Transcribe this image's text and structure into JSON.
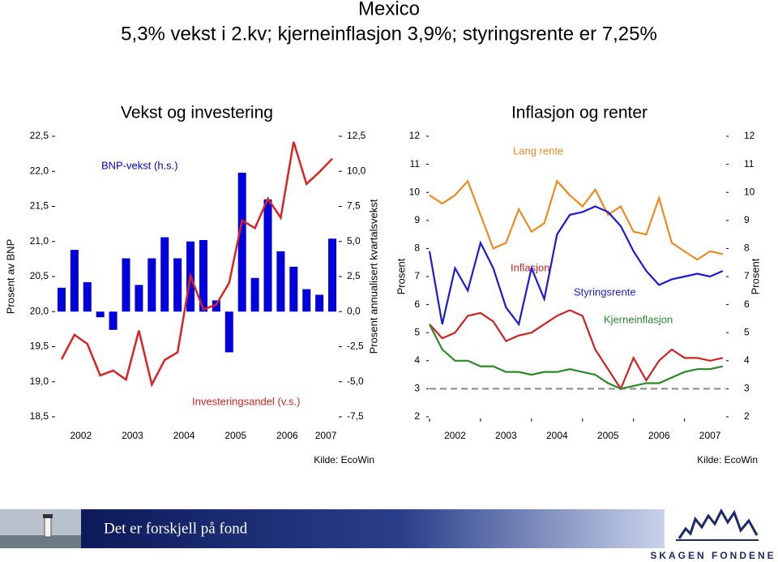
{
  "header": {
    "title": "Mexico",
    "subtitle": "5,3% vekst i 2.kv; kjerneinflasjon 3,9%; styringsrente er 7,25%"
  },
  "chart_data": [
    {
      "type": "combo",
      "title": "Vekst og investering",
      "ylabel": "Prosent av BNP",
      "y2label": "Prosent annualisert kvartalsvekst",
      "x_groups": [
        "2002",
        "2003",
        "2004",
        "2005",
        "2006",
        "2007"
      ],
      "categories": [
        null,
        null,
        null,
        null,
        null,
        null,
        null,
        null,
        null,
        null,
        null,
        null,
        null,
        null,
        null,
        null,
        null,
        null,
        null,
        null,
        null,
        null
      ],
      "ylim": [
        18.5,
        22.5
      ],
      "yticks": [
        {
          "value": 18.5,
          "label": "18,5"
        },
        {
          "value": 19,
          "label": "19,0"
        },
        {
          "value": 19.5,
          "label": "19,5"
        },
        {
          "value": 20,
          "label": "20,0"
        },
        {
          "value": 20.5,
          "label": "20,5"
        },
        {
          "value": 21,
          "label": "21,0"
        },
        {
          "value": 21.5,
          "label": "21,5"
        },
        {
          "value": 22,
          "label": "22,0"
        },
        {
          "value": 22.5,
          "label": "22,5"
        }
      ],
      "y2lim": [
        -7.5,
        12.5
      ],
      "y2ticks": [
        {
          "value": -7.5,
          "label": "-7,5"
        },
        {
          "value": -5,
          "label": "-5,0"
        },
        {
          "value": -2.5,
          "label": "-2,5"
        },
        {
          "value": 0,
          "label": "0,0"
        },
        {
          "value": 2.5,
          "label": "2,5"
        },
        {
          "value": 5,
          "label": "5,0"
        },
        {
          "value": 7.5,
          "label": "7,5"
        },
        {
          "value": 10,
          "label": "10,0"
        },
        {
          "value": 12.5,
          "label": "12,5"
        }
      ],
      "series": [
        {
          "name": "BNP-vekst (h.s.)",
          "type": "bar",
          "axis": "y2",
          "color": "#0000dd",
          "values": [
            1.7,
            4.4,
            2.1,
            -0.4,
            -1.3,
            3.8,
            1.9,
            3.8,
            5.3,
            3.8,
            5.0,
            5.1,
            0.8,
            -2.9,
            9.9,
            2.4,
            8.0,
            4.3,
            3.2,
            1.6,
            1.2,
            5.2
          ]
        },
        {
          "name": "Investeringsandel (v.s.)",
          "type": "line",
          "color": "#dd2222",
          "values": [
            19.32,
            19.67,
            19.54,
            19.09,
            19.16,
            19.03,
            19.73,
            18.96,
            19.31,
            19.42,
            20.51,
            20.03,
            20.1,
            20.41,
            21.3,
            21.19,
            21.61,
            21.34,
            22.42,
            21.82,
            21.99,
            22.18
          ]
        }
      ],
      "source": "Kilde: EcoWin"
    },
    {
      "type": "line",
      "title": "Inflasjon og renter",
      "ylabel": "Prosent",
      "y2label": "Prosent",
      "x": [
        2002.0,
        2002.25,
        2002.5,
        2002.75,
        2003.0,
        2003.25,
        2003.5,
        2003.75,
        2004.0,
        2004.25,
        2004.5,
        2004.75,
        2005.0,
        2005.25,
        2005.5,
        2005.75,
        2006.0,
        2006.25,
        2006.5,
        2006.75,
        2007.0,
        2007.25,
        2007.5,
        2007.75
      ],
      "xlim": [
        2002,
        2007.8
      ],
      "xticks": [
        2002,
        2003,
        2004,
        2005,
        2006,
        2007
      ],
      "ylim": [
        2,
        12
      ],
      "yticks": [
        2,
        3,
        4,
        5,
        6,
        7,
        8,
        9,
        10,
        11,
        12
      ],
      "y2lim": [
        2,
        12
      ],
      "y2ticks": [
        2,
        3,
        4,
        5,
        6,
        7,
        8,
        9,
        10,
        11,
        12
      ],
      "series": [
        {
          "name": "Lang rente",
          "color": "#f08a1c",
          "values": [
            9.9,
            9.6,
            9.9,
            10.4,
            9.2,
            8.0,
            8.2,
            9.4,
            8.6,
            8.9,
            10.4,
            9.9,
            9.5,
            10.1,
            9.2,
            9.5,
            8.6,
            8.5,
            9.8,
            8.2,
            7.9,
            7.6,
            7.9,
            7.8
          ]
        },
        {
          "name": "Inflasjon",
          "color": "#d42020",
          "values": [
            5.3,
            4.8,
            5.0,
            5.6,
            5.7,
            5.4,
            4.7,
            4.9,
            5.0,
            5.3,
            5.6,
            5.8,
            5.6,
            4.4,
            3.7,
            3.0,
            4.1,
            3.3,
            4.0,
            4.4,
            4.1,
            4.1,
            4.0,
            4.1
          ]
        },
        {
          "name": "Styringsrente",
          "color": "#1a1adc",
          "values": [
            7.9,
            5.3,
            7.3,
            6.5,
            8.2,
            7.3,
            5.9,
            5.3,
            7.3,
            6.2,
            8.5,
            9.2,
            9.3,
            9.5,
            9.3,
            8.8,
            7.9,
            7.2,
            6.7,
            6.9,
            7.0,
            7.1,
            7.0,
            7.2
          ]
        },
        {
          "name": "Kjerneinflasjon",
          "color": "#2a8a2a",
          "values": [
            5.3,
            4.4,
            4.0,
            4.0,
            3.8,
            3.8,
            3.6,
            3.6,
            3.5,
            3.6,
            3.6,
            3.7,
            3.6,
            3.5,
            3.2,
            3.0,
            3.1,
            3.2,
            3.2,
            3.4,
            3.6,
            3.7,
            3.7,
            3.8
          ]
        }
      ],
      "reference_line": {
        "value": 3,
        "color": "#888888"
      },
      "source": "Kilde: EcoWin"
    }
  ],
  "footer": {
    "slogan": "Det er forskjell på fond",
    "logo": "SKAGEN FONDENE"
  }
}
